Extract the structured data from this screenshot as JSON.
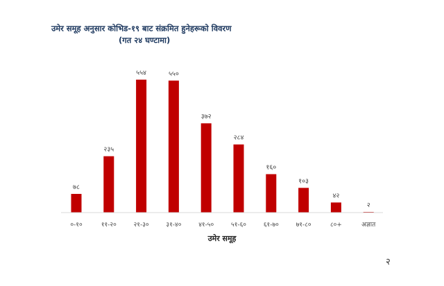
{
  "page": {
    "title": "उमेर समूह अनुसार कोभिड-१९ बाट संक्रमित हुनेहरूको विवरण",
    "subtitle": "(गत २४ घण्टामा)",
    "page_number": "२"
  },
  "chart_data": {
    "type": "bar",
    "title": "उमेर समूह अनुसार कोभिड-१९ बाट संक्रमित हुनेहरूको विवरण",
    "subtitle": "(गत २४ घण्टामा)",
    "xlabel": "उमेर समूह",
    "ylabel": "",
    "categories": [
      "०-१०",
      "११-२०",
      "२१-३०",
      "३१-४०",
      "४१-५०",
      "५१-६०",
      "६१-७०",
      "७१-८०",
      "८०+",
      "अज्ञात"
    ],
    "values": [
      78,
      235,
      554,
      550,
      372,
      284,
      160,
      103,
      42,
      2
    ],
    "value_labels": [
      "७८",
      "२३५",
      "५५४",
      "५५०",
      "३७२",
      "२८४",
      "१६०",
      "१०३",
      "४२",
      "२"
    ],
    "ylim": [
      0,
      600
    ],
    "grid": false,
    "legend": "none",
    "bar_color": "#c00000",
    "axis_color": "#d9d9d9"
  }
}
